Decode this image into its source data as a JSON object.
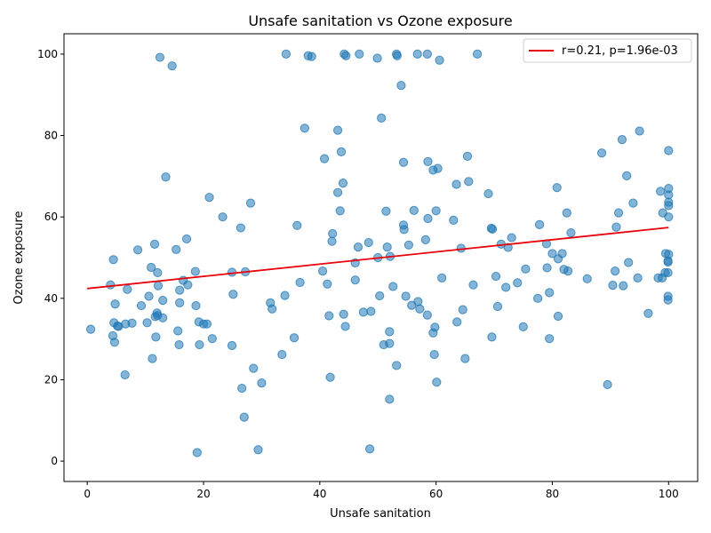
{
  "chart_data": {
    "type": "scatter",
    "title": "Unsafe sanitation vs Ozone exposure",
    "xlabel": "Unsafe sanitation",
    "ylabel": "Ozone exposure",
    "xlim": [
      -4,
      105
    ],
    "ylim": [
      -5,
      105
    ],
    "xticks": [
      0,
      20,
      40,
      60,
      80,
      100
    ],
    "yticks": [
      0,
      20,
      40,
      60,
      80,
      100
    ],
    "grid": false,
    "legend_position": "top-right",
    "point_color": "#1f77b4",
    "fit_color": "#e8000b",
    "fit_line": {
      "label": "r=0.21, p=1.96e-03",
      "x": [
        0,
        100
      ],
      "y": [
        42.4,
        57.4
      ]
    },
    "points": [
      [
        0.6,
        32.4
      ],
      [
        4,
        43.3
      ],
      [
        4.4,
        30.8
      ],
      [
        4.5,
        49.5
      ],
      [
        4.6,
        34
      ],
      [
        4.7,
        29.2
      ],
      [
        4.8,
        38.6
      ],
      [
        5.2,
        33.2
      ],
      [
        5.4,
        33.1
      ],
      [
        6.5,
        21.2
      ],
      [
        6.6,
        33.7
      ],
      [
        6.9,
        42.2
      ],
      [
        7.7,
        33.9
      ],
      [
        8.7,
        51.9
      ],
      [
        9.3,
        38.2
      ],
      [
        10.3,
        34
      ],
      [
        10.6,
        40.5
      ],
      [
        11,
        47.6
      ],
      [
        11.2,
        25.2
      ],
      [
        11.6,
        53.3
      ],
      [
        11.7,
        35.5
      ],
      [
        11.8,
        30.5
      ],
      [
        12,
        36.4
      ],
      [
        12.1,
        35.8
      ],
      [
        12.1,
        46.3
      ],
      [
        12.2,
        43.1
      ],
      [
        12.5,
        99.2
      ],
      [
        13,
        39.5
      ],
      [
        13,
        35.2
      ],
      [
        13.5,
        69.8
      ],
      [
        14.6,
        97.1
      ],
      [
        15.3,
        52
      ],
      [
        15.6,
        32
      ],
      [
        15.8,
        28.6
      ],
      [
        15.9,
        38.9
      ],
      [
        15.9,
        42
      ],
      [
        16.5,
        44.4
      ],
      [
        17.1,
        54.6
      ],
      [
        17.3,
        43.3
      ],
      [
        18.6,
        46.6
      ],
      [
        18.7,
        38.2
      ],
      [
        18.9,
        2.1
      ],
      [
        19.2,
        34.2
      ],
      [
        19.3,
        28.6
      ],
      [
        20,
        33.7
      ],
      [
        20.6,
        33.7
      ],
      [
        21,
        64.8
      ],
      [
        21.5,
        30.1
      ],
      [
        23.3,
        60
      ],
      [
        24.9,
        28.4
      ],
      [
        24.9,
        46.4
      ],
      [
        25.1,
        41
      ],
      [
        26.4,
        57.3
      ],
      [
        26.6,
        17.9
      ],
      [
        27,
        10.8
      ],
      [
        27.2,
        46.5
      ],
      [
        28.1,
        63.4
      ],
      [
        28.6,
        22.8
      ],
      [
        29.4,
        2.8
      ],
      [
        30,
        19.2
      ],
      [
        31.5,
        38.9
      ],
      [
        31.8,
        37.4
      ],
      [
        33.5,
        26.2
      ],
      [
        34,
        40.7
      ],
      [
        34.2,
        100
      ],
      [
        35.6,
        30.3
      ],
      [
        36.1,
        57.9
      ],
      [
        36.6,
        43.9
      ],
      [
        37.4,
        81.8
      ],
      [
        38,
        99.6
      ],
      [
        38.6,
        99.4
      ],
      [
        40.5,
        46.7
      ],
      [
        40.8,
        74.3
      ],
      [
        41.3,
        43.5
      ],
      [
        41.6,
        35.7
      ],
      [
        41.8,
        20.6
      ],
      [
        42.1,
        54
      ],
      [
        42.2,
        55.9
      ],
      [
        43.1,
        81.3
      ],
      [
        43.1,
        66
      ],
      [
        43.5,
        61.5
      ],
      [
        43.7,
        76
      ],
      [
        44.1,
        36.1
      ],
      [
        44,
        68.3
      ],
      [
        44.2,
        100
      ],
      [
        44.4,
        33.1
      ],
      [
        44.5,
        99.6
      ],
      [
        46.1,
        48.7
      ],
      [
        46.1,
        44.5
      ],
      [
        46.6,
        52.6
      ],
      [
        46.8,
        100
      ],
      [
        47.5,
        36.6
      ],
      [
        48.4,
        53.7
      ],
      [
        48.6,
        3
      ],
      [
        48.8,
        36.8
      ],
      [
        49.9,
        99
      ],
      [
        50,
        50
      ],
      [
        50.3,
        40.6
      ],
      [
        50.6,
        84.3
      ],
      [
        51,
        28.6
      ],
      [
        51.4,
        61.4
      ],
      [
        51.6,
        52.6
      ],
      [
        52,
        28.9
      ],
      [
        52,
        15.2
      ],
      [
        52,
        31.8
      ],
      [
        52.1,
        50.3
      ],
      [
        52.6,
        42.9
      ],
      [
        53.2,
        23.5
      ],
      [
        53.2,
        100
      ],
      [
        53.3,
        99.6
      ],
      [
        54,
        92.3
      ],
      [
        54.4,
        73.4
      ],
      [
        54.4,
        58
      ],
      [
        54.5,
        56.9
      ],
      [
        54.8,
        40.5
      ],
      [
        55.3,
        53.1
      ],
      [
        55.8,
        38.3
      ],
      [
        56.2,
        61.6
      ],
      [
        56.8,
        100
      ],
      [
        56.9,
        39.2
      ],
      [
        57.2,
        37.4
      ],
      [
        58.2,
        54.4
      ],
      [
        58.5,
        35.9
      ],
      [
        58.5,
        100
      ],
      [
        58.6,
        59.6
      ],
      [
        58.6,
        73.6
      ],
      [
        59.5,
        71.5
      ],
      [
        59.5,
        31.5
      ],
      [
        59.7,
        26.2
      ],
      [
        59.8,
        32.9
      ],
      [
        60,
        61.5
      ],
      [
        60.1,
        19.4
      ],
      [
        60.3,
        71.9
      ],
      [
        60.6,
        98.5
      ],
      [
        61,
        45
      ],
      [
        63,
        59.2
      ],
      [
        63.5,
        68
      ],
      [
        63.6,
        34.2
      ],
      [
        64.3,
        52.3
      ],
      [
        64.6,
        37.2
      ],
      [
        65,
        25.2
      ],
      [
        65.4,
        74.9
      ],
      [
        65.6,
        68.7
      ],
      [
        66.4,
        43.3
      ],
      [
        67.1,
        100
      ],
      [
        69,
        65.7
      ],
      [
        69.5,
        57.2
      ],
      [
        69.6,
        30.5
      ],
      [
        69.7,
        57
      ],
      [
        70.3,
        45.4
      ],
      [
        70.6,
        38
      ],
      [
        71.2,
        53.3
      ],
      [
        72,
        42.7
      ],
      [
        72.4,
        52.5
      ],
      [
        73,
        54.9
      ],
      [
        74,
        43.8
      ],
      [
        75,
        33
      ],
      [
        75.4,
        47.2
      ],
      [
        77.5,
        40
      ],
      [
        77.8,
        58.1
      ],
      [
        79,
        53.4
      ],
      [
        79.1,
        47.5
      ],
      [
        79.5,
        30.1
      ],
      [
        79.5,
        41.4
      ],
      [
        80,
        51
      ],
      [
        80.8,
        67.2
      ],
      [
        81,
        35.6
      ],
      [
        81,
        49.7
      ],
      [
        81.7,
        51
      ],
      [
        82,
        47.1
      ],
      [
        82.5,
        61
      ],
      [
        82.7,
        46.7
      ],
      [
        83.2,
        56.1
      ],
      [
        86,
        44.8
      ],
      [
        88.5,
        75.7
      ],
      [
        89.5,
        18.8
      ],
      [
        90.4,
        43.2
      ],
      [
        90.8,
        46.7
      ],
      [
        91,
        57.5
      ],
      [
        91.4,
        61
      ],
      [
        92,
        79
      ],
      [
        92.2,
        43.1
      ],
      [
        92.8,
        70.1
      ],
      [
        93.1,
        48.8
      ],
      [
        93.9,
        63.4
      ],
      [
        94.7,
        45
      ],
      [
        95,
        81.1
      ],
      [
        96.5,
        36.3
      ],
      [
        98.2,
        45
      ],
      [
        98.6,
        66.3
      ],
      [
        98.9,
        45
      ],
      [
        99,
        61
      ],
      [
        99.4,
        46.3
      ],
      [
        99.5,
        51
      ],
      [
        99.9,
        40.5
      ],
      [
        99.9,
        39.6
      ],
      [
        99.9,
        46.3
      ],
      [
        99.9,
        48.9
      ],
      [
        99.9,
        49.2
      ],
      [
        100,
        65.4
      ],
      [
        100,
        67
      ],
      [
        100,
        60
      ],
      [
        100,
        63.6
      ],
      [
        100,
        62.8
      ],
      [
        100,
        50.8
      ],
      [
        100,
        76.3
      ]
    ]
  }
}
